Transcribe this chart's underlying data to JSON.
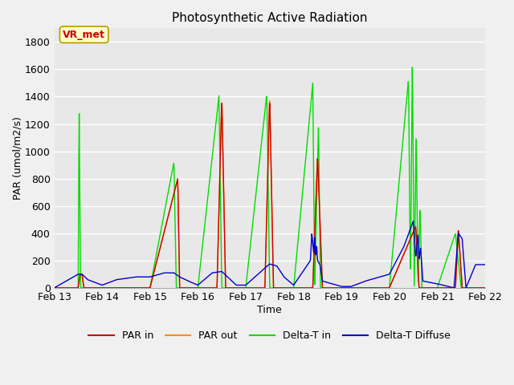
{
  "title": "Photosynthetic Active Radiation",
  "xlabel": "Time",
  "ylabel": "PAR (umol/m2/s)",
  "ylim": [
    0,
    1900
  ],
  "yticks": [
    0,
    200,
    400,
    600,
    800,
    1000,
    1200,
    1400,
    1600,
    1800
  ],
  "background_color": "#f0f0f0",
  "plot_bg_color": "#e8e8e8",
  "legend_labels": [
    "PAR in",
    "PAR out",
    "Delta-T in",
    "Delta-T Diffuse"
  ],
  "legend_colors": [
    "#cc0000",
    "#ff8c00",
    "#00dd00",
    "#0000cc"
  ],
  "line_colors": {
    "par_in": "#cc0000",
    "par_out": "#ff8c00",
    "delta_t_in": "#00dd00",
    "delta_t_diffuse": "#0000cc"
  },
  "annotation_text": "VR_met",
  "annotation_color": "#cc0000",
  "annotation_bg": "#ffffcc",
  "days": [
    "Feb 13",
    "Feb 14",
    "Feb 15",
    "Feb 16",
    "Feb 17",
    "Feb 18",
    "Feb 19",
    "Feb 20",
    "Feb 21",
    "Feb 22"
  ],
  "figsize": [
    6.4,
    4.8
  ],
  "dpi": 100
}
